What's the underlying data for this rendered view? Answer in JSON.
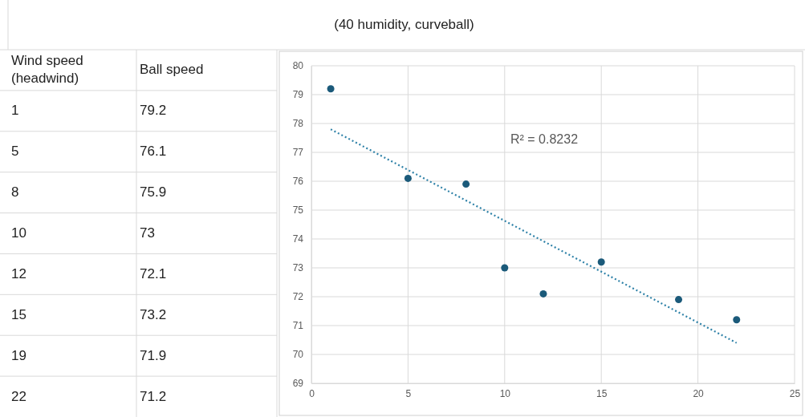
{
  "chart_data": [
    {
      "type": "other",
      "title": "(40 humidity, curveball)",
      "annotations": [
        "Wind speed (headwind)",
        "Ball speed",
        "1",
        "79.2",
        "5",
        "76.1",
        "8",
        "75.9",
        "10",
        "73",
        "12",
        "72.1",
        "15",
        "73.2",
        "19",
        "71.9",
        "22",
        "71.2"
      ]
    },
    {
      "type": "scatter",
      "x": [
        1,
        5,
        8,
        10,
        12,
        15,
        19,
        22
      ],
      "series": [
        {
          "type": "scatter",
          "color": "#1b5a7a",
          "values": [
            79.2,
            76.1,
            75.9,
            73,
            72.1,
            73.2,
            71.9,
            71.2
          ]
        },
        {
          "type": "line",
          "color": "#2f82a8",
          "line_style": "dotted",
          "marker": "none",
          "x": [
            1,
            22
          ],
          "values": [
            77.8,
            70.4
          ]
        }
      ],
      "marker": "circle",
      "grid": true,
      "xlim": [
        0,
        25
      ],
      "xticks": [
        0,
        5,
        10,
        15,
        20,
        25
      ],
      "ylim": [
        69,
        80
      ],
      "yticks": [
        69,
        70,
        71,
        72,
        73,
        74,
        75,
        76,
        77,
        78,
        79,
        80
      ],
      "annotations": [
        "R² = 0.8232"
      ]
    }
  ]
}
